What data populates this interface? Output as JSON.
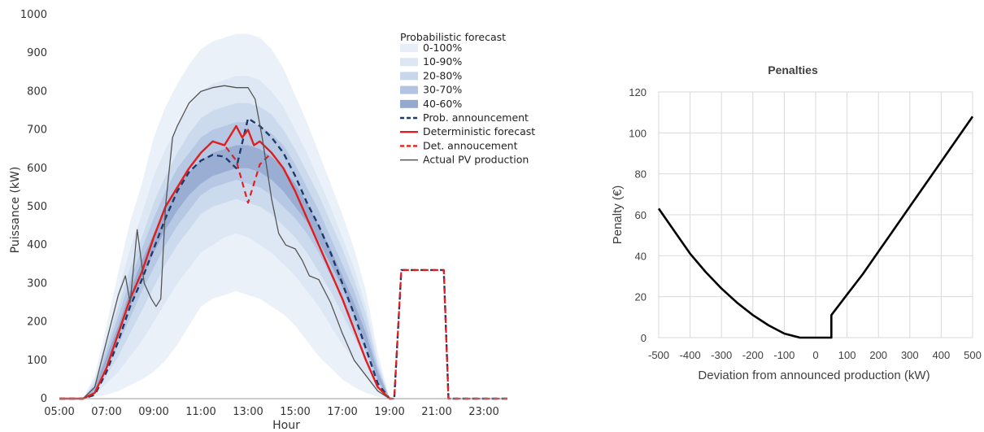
{
  "chart_data": [
    {
      "type": "line",
      "title": "",
      "xlabel": "Hour",
      "ylabel": "Puissance (kW)",
      "x_tick_labels": [
        "05:00",
        "07:00",
        "09:00",
        "11:00",
        "13:00",
        "15:00",
        "17:00",
        "19:00",
        "21:00",
        "23:00"
      ],
      "y_tick_labels": [
        "0",
        "100",
        "200",
        "300",
        "400",
        "500",
        "600",
        "700",
        "800",
        "900",
        "1000"
      ],
      "xlim": [
        5,
        24
      ],
      "ylim": [
        0,
        1000
      ],
      "legend": {
        "title": "Probabilistic forecast",
        "position": "top-right"
      },
      "quantile_bands": {
        "x": [
          5,
          6,
          6.5,
          7,
          7.5,
          8,
          8.5,
          9,
          9.5,
          10,
          10.5,
          11,
          11.5,
          12,
          12.5,
          13,
          13.5,
          14,
          14.5,
          15,
          15.5,
          16,
          16.5,
          17,
          17.5,
          18,
          18.5,
          19
        ],
        "bands": [
          {
            "name": "0-100%",
            "color": "#e8eef8",
            "lower": [
              0,
              0,
              5,
              10,
              20,
              35,
              50,
              70,
              100,
              140,
              190,
              240,
              260,
              270,
              280,
              270,
              260,
              240,
              220,
              190,
              150,
              110,
              80,
              50,
              30,
              15,
              5,
              0
            ],
            "upper": [
              0,
              0,
              60,
              190,
              330,
              460,
              560,
              680,
              760,
              820,
              870,
              910,
              930,
              940,
              950,
              950,
              940,
              910,
              860,
              790,
              720,
              640,
              560,
              480,
              390,
              280,
              120,
              0
            ]
          },
          {
            "name": "10-90%",
            "color": "#dce6f4",
            "lower": [
              0,
              0,
              10,
              40,
              70,
              110,
              150,
              200,
              250,
              300,
              340,
              380,
              400,
              420,
              430,
              420,
              400,
              380,
              350,
              320,
              280,
              240,
              190,
              140,
              100,
              60,
              20,
              0
            ],
            "upper": [
              0,
              0,
              50,
              160,
              280,
              390,
              480,
              580,
              650,
              710,
              760,
              800,
              820,
              830,
              840,
              840,
              830,
              800,
              760,
              700,
              640,
              570,
              500,
              420,
              340,
              240,
              100,
              0
            ]
          },
          {
            "name": "20-80%",
            "color": "#c9d7ec",
            "lower": [
              0,
              0,
              15,
              60,
              110,
              170,
              230,
              290,
              350,
              400,
              440,
              480,
              500,
              510,
              520,
              510,
              500,
              480,
              450,
              420,
              380,
              330,
              280,
              220,
              160,
              100,
              30,
              0
            ],
            "upper": [
              0,
              0,
              40,
              140,
              240,
              340,
              420,
              510,
              580,
              640,
              690,
              730,
              750,
              760,
              770,
              770,
              760,
              740,
              700,
              650,
              590,
              530,
              460,
              390,
              310,
              220,
              90,
              0
            ]
          },
          {
            "name": "30-70%",
            "color": "#b2c4e0",
            "lower": [
              0,
              0,
              18,
              75,
              140,
              210,
              280,
              340,
              400,
              450,
              490,
              530,
              550,
              560,
              570,
              560,
              550,
              530,
              500,
              470,
              430,
              380,
              320,
              260,
              190,
              120,
              40,
              0
            ],
            "upper": [
              0,
              0,
              35,
              125,
              215,
              310,
              390,
              470,
              540,
              600,
              640,
              680,
              700,
              710,
              720,
              720,
              710,
              690,
              660,
              610,
              550,
              490,
              420,
              350,
              280,
              190,
              80,
              0
            ]
          },
          {
            "name": "40-60%",
            "color": "#94a9cf",
            "lower": [
              0,
              0,
              22,
              90,
              165,
              240,
              310,
              380,
              440,
              490,
              530,
              560,
              580,
              590,
              600,
              600,
              590,
              570,
              540,
              500,
              460,
              410,
              350,
              290,
              220,
              140,
              50,
              0
            ],
            "upper": [
              0,
              0,
              30,
              110,
              190,
              280,
              360,
              430,
              500,
              550,
              590,
              620,
              640,
              650,
              660,
              660,
              650,
              630,
              600,
              560,
              510,
              450,
              390,
              320,
              250,
              170,
              70,
              0
            ]
          }
        ]
      },
      "series": [
        {
          "name": "Prob. announcement",
          "color": "#1f3a6b",
          "style": "dashed",
          "x": [
            5,
            6,
            6.5,
            7,
            7.5,
            8,
            8.5,
            9,
            9.5,
            10,
            10.5,
            11,
            11.5,
            12,
            12.5,
            13,
            13.5,
            14,
            14.5,
            15,
            15.5,
            16,
            16.5,
            17,
            17.5,
            18,
            18.5,
            19,
            19.2,
            19.5,
            21.3,
            21.5,
            22,
            24
          ],
          "y": [
            0,
            0,
            10,
            70,
            150,
            240,
            310,
            390,
            470,
            540,
            590,
            620,
            635,
            630,
            600,
            730,
            710,
            680,
            640,
            580,
            510,
            450,
            380,
            300,
            220,
            130,
            40,
            0,
            0,
            335,
            335,
            0,
            0,
            0
          ]
        },
        {
          "name": "Deterministic forecast",
          "color": "#e02020",
          "style": "solid",
          "x": [
            5,
            6,
            6.5,
            7,
            7.5,
            8,
            8.5,
            9,
            9.5,
            10,
            10.5,
            11,
            11.5,
            12,
            12.5,
            12.75,
            13,
            13.25,
            13.5,
            14,
            14.5,
            15,
            15.5,
            16,
            16.5,
            17,
            17.5,
            18,
            18.5,
            19
          ],
          "y": [
            0,
            0,
            15,
            80,
            170,
            260,
            330,
            420,
            500,
            550,
            600,
            640,
            670,
            660,
            710,
            680,
            700,
            660,
            670,
            640,
            600,
            540,
            470,
            400,
            330,
            260,
            180,
            100,
            30,
            0
          ]
        },
        {
          "name": "Det. annoucement",
          "color": "#e02020",
          "style": "dashed",
          "x": [
            5,
            6,
            6.5,
            7,
            7.5,
            8,
            8.5,
            9,
            9.5,
            10,
            10.5,
            11,
            11.5,
            12,
            12.5,
            13,
            13.5,
            14,
            14.5,
            15,
            15.5,
            16,
            16.5,
            17,
            17.5,
            18,
            18.5,
            19,
            19.2,
            19.5,
            21.3,
            21.5,
            22,
            24
          ],
          "y": [
            0,
            0,
            15,
            80,
            170,
            260,
            330,
            420,
            500,
            550,
            600,
            640,
            670,
            660,
            620,
            510,
            610,
            640,
            600,
            540,
            470,
            400,
            330,
            260,
            180,
            100,
            30,
            0,
            0,
            335,
            335,
            0,
            0,
            0
          ]
        },
        {
          "name": "Actual PV production",
          "color": "#555555",
          "style": "solid",
          "x": [
            5,
            6,
            6.5,
            7,
            7.5,
            7.8,
            8,
            8.3,
            8.6,
            8.9,
            9.1,
            9.3,
            9.5,
            9.8,
            10,
            10.5,
            11,
            11.5,
            12,
            12.5,
            13,
            13.3,
            13.6,
            14,
            14.3,
            14.6,
            15,
            15.3,
            15.6,
            16,
            16.5,
            17,
            17.5,
            18,
            18.5,
            19
          ],
          "y": [
            0,
            0,
            30,
            150,
            270,
            320,
            250,
            440,
            300,
            260,
            240,
            260,
            500,
            680,
            710,
            770,
            800,
            810,
            815,
            810,
            810,
            780,
            680,
            520,
            430,
            400,
            390,
            360,
            320,
            310,
            250,
            170,
            100,
            60,
            20,
            0
          ]
        }
      ]
    },
    {
      "type": "line",
      "title": "Penalties",
      "xlabel": "Deviation from announced production (kW)",
      "ylabel": "Penalty (€)",
      "x_tick_labels": [
        "-500",
        "-400",
        "-300",
        "-200",
        "-100",
        "0",
        "100",
        "200",
        "300",
        "400",
        "500"
      ],
      "y_tick_labels": [
        "0",
        "20",
        "40",
        "60",
        "80",
        "100",
        "120"
      ],
      "xlim": [
        -500,
        500
      ],
      "ylim": [
        0,
        120
      ],
      "grid": true,
      "series": [
        {
          "name": "",
          "color": "#000000",
          "x": [
            -500,
            -450,
            -400,
            -350,
            -300,
            -250,
            -200,
            -150,
            -100,
            -50,
            0,
            25,
            50,
            50,
            100,
            150,
            200,
            250,
            300,
            350,
            400,
            450,
            500
          ],
          "y": [
            63,
            52,
            41,
            32,
            24,
            17,
            11,
            6,
            2,
            0,
            0,
            0,
            0,
            11,
            21,
            31,
            42,
            53,
            64,
            75,
            86,
            97,
            108
          ]
        }
      ]
    }
  ]
}
